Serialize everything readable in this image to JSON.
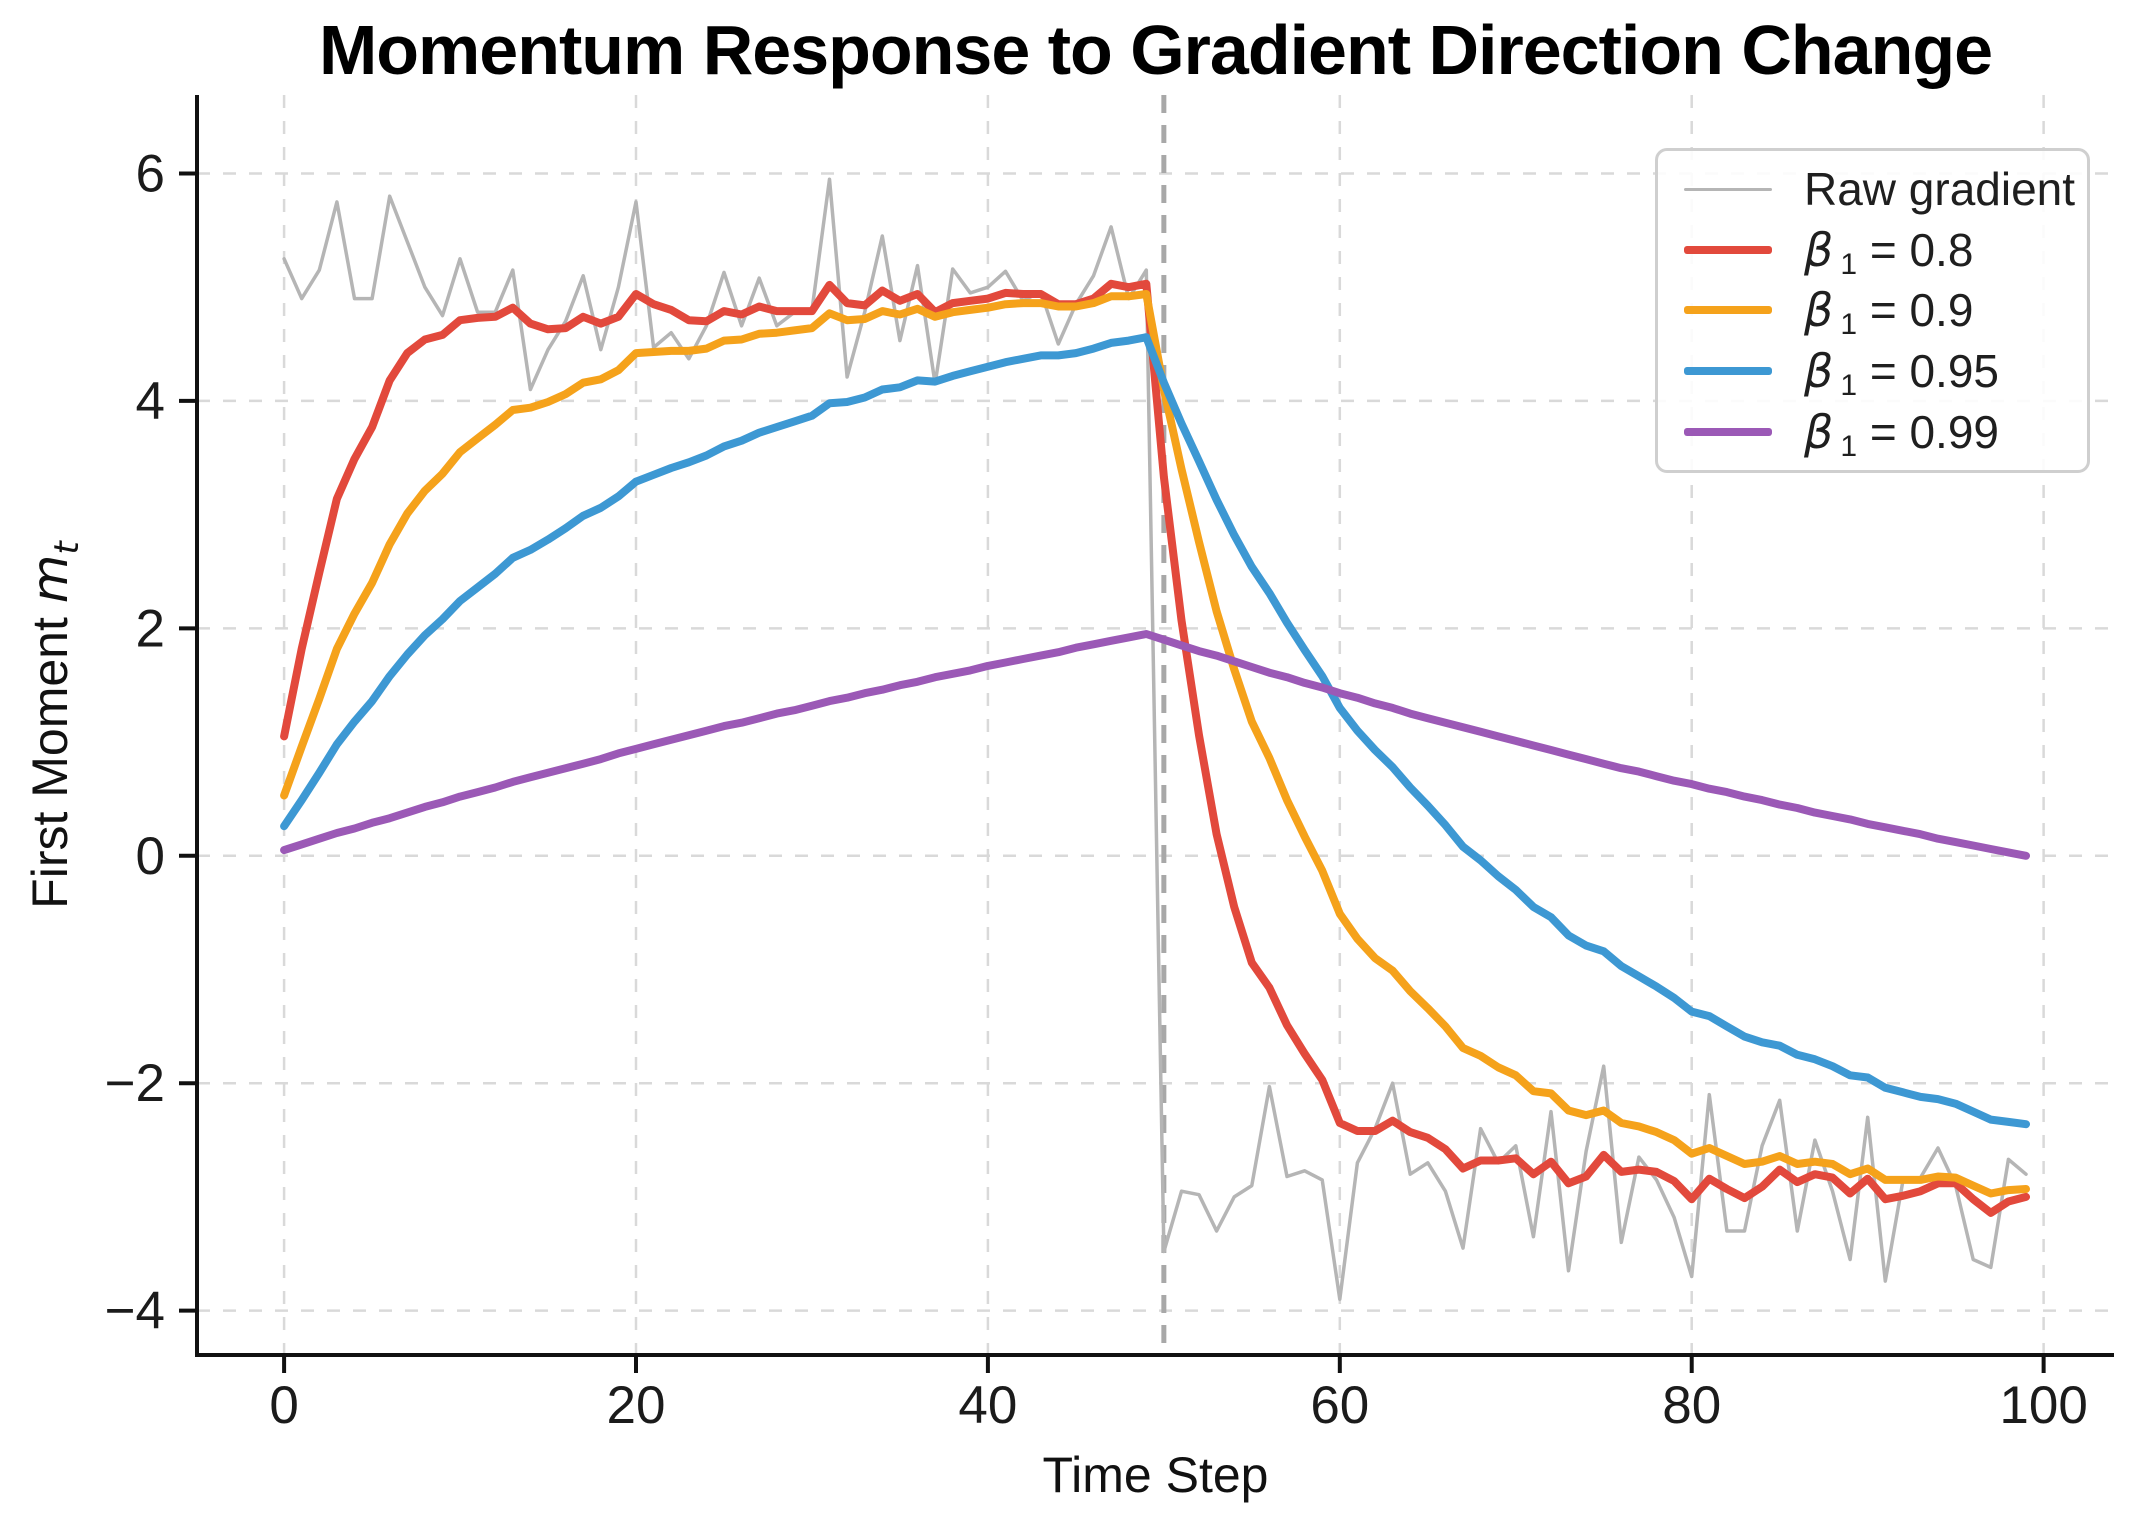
{
  "title": "Momentum Response to Gradient Direction Change",
  "x_label": "Time Step",
  "y_label": {
    "prefix": "First Moment ",
    "var": "m",
    "sub": "t"
  },
  "colors": {
    "background": "#ffffff",
    "spine": "#111111",
    "grid": "#d9d9d9",
    "vline": "#a8a8a8",
    "tick_text": "#1b1b1b",
    "raw": "#b5b5b5",
    "beta_08": "#e2493c",
    "beta_09": "#f5a21b",
    "beta_095": "#3d98d3",
    "beta_099": "#9b59b6"
  },
  "chart_data": {
    "type": "line",
    "title": "Momentum Response to Gradient Direction Change",
    "xlabel": "Time Step",
    "ylabel": "First Moment m_t",
    "grid": true,
    "legend_position": "upper right",
    "xlim": [
      -4.95,
      104.0
    ],
    "ylim": [
      -4.39,
      6.69
    ],
    "xticks": [
      0,
      20,
      40,
      60,
      80,
      100
    ],
    "yticks": [
      -4,
      -2,
      0,
      2,
      4,
      6
    ],
    "vline": {
      "x": 50,
      "style": "dashed",
      "color": "#a8a8a8",
      "width": 5
    },
    "x": [
      0,
      1,
      2,
      3,
      4,
      5,
      6,
      7,
      8,
      9,
      10,
      11,
      12,
      13,
      14,
      15,
      16,
      17,
      18,
      19,
      20,
      21,
      22,
      23,
      24,
      25,
      26,
      27,
      28,
      29,
      30,
      31,
      32,
      33,
      34,
      35,
      36,
      37,
      38,
      39,
      40,
      41,
      42,
      43,
      44,
      45,
      46,
      47,
      48,
      49,
      50,
      51,
      52,
      53,
      54,
      55,
      56,
      57,
      58,
      59,
      60,
      61,
      62,
      63,
      64,
      65,
      66,
      67,
      68,
      69,
      70,
      71,
      72,
      73,
      74,
      75,
      76,
      77,
      78,
      79,
      80,
      81,
      82,
      83,
      84,
      85,
      86,
      87,
      88,
      89,
      90,
      91,
      92,
      93,
      94,
      95,
      96,
      97,
      98,
      99
    ],
    "series": [
      {
        "key": "raw",
        "color": "#b5b5b5",
        "width": 3.5,
        "legend": {
          "text": "Raw gradient"
        },
        "values": [
          5.25,
          4.9,
          5.15,
          5.75,
          4.9,
          4.9,
          5.8,
          5.4,
          5.0,
          4.75,
          5.25,
          4.78,
          4.78,
          5.15,
          4.1,
          4.45,
          4.7,
          5.1,
          4.45,
          5.0,
          5.75,
          4.47,
          4.6,
          4.37,
          4.66,
          5.13,
          4.66,
          5.08,
          4.66,
          4.78,
          4.8,
          5.95,
          4.21,
          4.78,
          5.45,
          4.53,
          5.19,
          4.15,
          5.16,
          4.95,
          5.0,
          5.14,
          4.88,
          4.96,
          4.5,
          4.85,
          5.1,
          5.53,
          4.9,
          5.15,
          -3.48,
          -2.95,
          -2.98,
          -3.3,
          -3.0,
          -2.9,
          -2.03,
          -2.82,
          -2.77,
          -2.85,
          -3.9,
          -2.7,
          -2.4,
          -2.0,
          -2.8,
          -2.7,
          -2.95,
          -3.45,
          -2.4,
          -2.7,
          -2.55,
          -3.35,
          -2.25,
          -3.65,
          -2.6,
          -1.85,
          -3.4,
          -2.65,
          -2.85,
          -3.18,
          -3.7,
          -2.1,
          -3.3,
          -3.3,
          -2.55,
          -2.15,
          -3.3,
          -2.5,
          -2.95,
          -3.55,
          -2.3,
          -3.74,
          -2.86,
          -2.83,
          -2.57,
          -2.9,
          -3.55,
          -3.62,
          -2.67,
          -2.8
        ]
      },
      {
        "key": "beta-0.8",
        "color": "#e2493c",
        "width": 8,
        "legend": {
          "symbol": "β",
          "sub": "1",
          "rest": " = 0.8"
        },
        "values": [
          1.05,
          1.82,
          2.49,
          3.14,
          3.49,
          3.77,
          4.18,
          4.42,
          4.54,
          4.58,
          4.71,
          4.73,
          4.74,
          4.82,
          4.68,
          4.63,
          4.64,
          4.74,
          4.68,
          4.74,
          4.94,
          4.85,
          4.8,
          4.71,
          4.7,
          4.79,
          4.76,
          4.83,
          4.79,
          4.79,
          4.79,
          5.02,
          4.86,
          4.84,
          4.97,
          4.88,
          4.94,
          4.78,
          4.86,
          4.88,
          4.9,
          4.95,
          4.94,
          4.94,
          4.85,
          4.85,
          4.9,
          5.03,
          5.0,
          5.03,
          3.33,
          2.07,
          1.06,
          0.19,
          -0.45,
          -0.94,
          -1.16,
          -1.49,
          -1.74,
          -1.97,
          -2.35,
          -2.42,
          -2.42,
          -2.33,
          -2.43,
          -2.48,
          -2.58,
          -2.75,
          -2.68,
          -2.68,
          -2.66,
          -2.8,
          -2.69,
          -2.88,
          -2.82,
          -2.63,
          -2.78,
          -2.76,
          -2.78,
          -2.86,
          -3.02,
          -2.84,
          -2.93,
          -3.01,
          -2.91,
          -2.76,
          -2.87,
          -2.8,
          -2.83,
          -2.97,
          -2.84,
          -3.02,
          -2.99,
          -2.95,
          -2.88,
          -2.88,
          -3.02,
          -3.14,
          -3.04,
          -3.0
        ]
      },
      {
        "key": "beta-0.9",
        "color": "#f5a21b",
        "width": 8,
        "legend": {
          "symbol": "β",
          "sub": "1",
          "rest": " = 0.9"
        },
        "values": [
          0.53,
          0.96,
          1.38,
          1.82,
          2.13,
          2.4,
          2.74,
          3.01,
          3.21,
          3.36,
          3.55,
          3.67,
          3.79,
          3.92,
          3.94,
          3.99,
          4.06,
          4.16,
          4.19,
          4.27,
          4.42,
          4.43,
          4.44,
          4.44,
          4.46,
          4.53,
          4.54,
          4.59,
          4.6,
          4.62,
          4.64,
          4.77,
          4.71,
          4.72,
          4.79,
          4.76,
          4.81,
          4.74,
          4.78,
          4.8,
          4.82,
          4.85,
          4.86,
          4.86,
          4.83,
          4.83,
          4.86,
          4.92,
          4.92,
          4.94,
          4.1,
          3.4,
          2.76,
          2.15,
          1.64,
          1.18,
          0.86,
          0.49,
          0.17,
          -0.13,
          -0.51,
          -0.73,
          -0.9,
          -1.01,
          -1.19,
          -1.34,
          -1.5,
          -1.69,
          -1.76,
          -1.86,
          -1.93,
          -2.07,
          -2.09,
          -2.24,
          -2.28,
          -2.24,
          -2.35,
          -2.38,
          -2.43,
          -2.5,
          -2.62,
          -2.57,
          -2.64,
          -2.71,
          -2.69,
          -2.64,
          -2.71,
          -2.69,
          -2.71,
          -2.8,
          -2.75,
          -2.85,
          -2.85,
          -2.85,
          -2.82,
          -2.83,
          -2.9,
          -2.97,
          -2.94,
          -2.93
        ]
      },
      {
        "key": "beta-0.95",
        "color": "#3d98d3",
        "width": 8,
        "legend": {
          "symbol": "β",
          "sub": "1",
          "rest": " = 0.95"
        },
        "values": [
          0.26,
          0.49,
          0.73,
          0.98,
          1.18,
          1.36,
          1.58,
          1.77,
          1.94,
          2.08,
          2.24,
          2.36,
          2.48,
          2.62,
          2.69,
          2.78,
          2.88,
          2.99,
          3.06,
          3.16,
          3.29,
          3.35,
          3.41,
          3.46,
          3.52,
          3.6,
          3.65,
          3.72,
          3.77,
          3.82,
          3.87,
          3.98,
          3.99,
          4.03,
          4.1,
          4.12,
          4.18,
          4.17,
          4.22,
          4.26,
          4.3,
          4.34,
          4.37,
          4.4,
          4.4,
          4.42,
          4.46,
          4.51,
          4.53,
          4.56,
          4.16,
          3.8,
          3.47,
          3.13,
          2.82,
          2.54,
          2.31,
          2.05,
          1.81,
          1.58,
          1.3,
          1.1,
          0.93,
          0.78,
          0.6,
          0.44,
          0.27,
          0.08,
          -0.04,
          -0.18,
          -0.3,
          -0.45,
          -0.54,
          -0.7,
          -0.79,
          -0.84,
          -0.97,
          -1.06,
          -1.15,
          -1.25,
          -1.37,
          -1.41,
          -1.5,
          -1.59,
          -1.64,
          -1.67,
          -1.75,
          -1.79,
          -1.85,
          -1.93,
          -1.95,
          -2.04,
          -2.08,
          -2.12,
          -2.14,
          -2.18,
          -2.25,
          -2.32,
          -2.34,
          -2.36
        ]
      },
      {
        "key": "beta-0.99",
        "color": "#9b59b6",
        "width": 8,
        "legend": {
          "symbol": "β",
          "sub": "1",
          "rest": " = 0.99"
        },
        "values": [
          0.05,
          0.1,
          0.15,
          0.2,
          0.24,
          0.29,
          0.33,
          0.38,
          0.43,
          0.47,
          0.52,
          0.56,
          0.6,
          0.65,
          0.69,
          0.73,
          0.77,
          0.81,
          0.85,
          0.9,
          0.94,
          0.98,
          1.02,
          1.06,
          1.1,
          1.14,
          1.17,
          1.21,
          1.25,
          1.28,
          1.32,
          1.36,
          1.39,
          1.43,
          1.46,
          1.5,
          1.53,
          1.57,
          1.6,
          1.63,
          1.67,
          1.7,
          1.73,
          1.76,
          1.79,
          1.83,
          1.86,
          1.89,
          1.92,
          1.95,
          1.9,
          1.85,
          1.8,
          1.76,
          1.71,
          1.66,
          1.61,
          1.57,
          1.52,
          1.48,
          1.43,
          1.39,
          1.34,
          1.3,
          1.25,
          1.21,
          1.17,
          1.13,
          1.09,
          1.05,
          1.01,
          0.97,
          0.93,
          0.89,
          0.85,
          0.81,
          0.77,
          0.74,
          0.7,
          0.66,
          0.63,
          0.59,
          0.56,
          0.52,
          0.49,
          0.45,
          0.42,
          0.38,
          0.35,
          0.32,
          0.28,
          0.25,
          0.22,
          0.19,
          0.15,
          0.12,
          0.09,
          0.06,
          0.03,
          0.0
        ]
      }
    ]
  }
}
